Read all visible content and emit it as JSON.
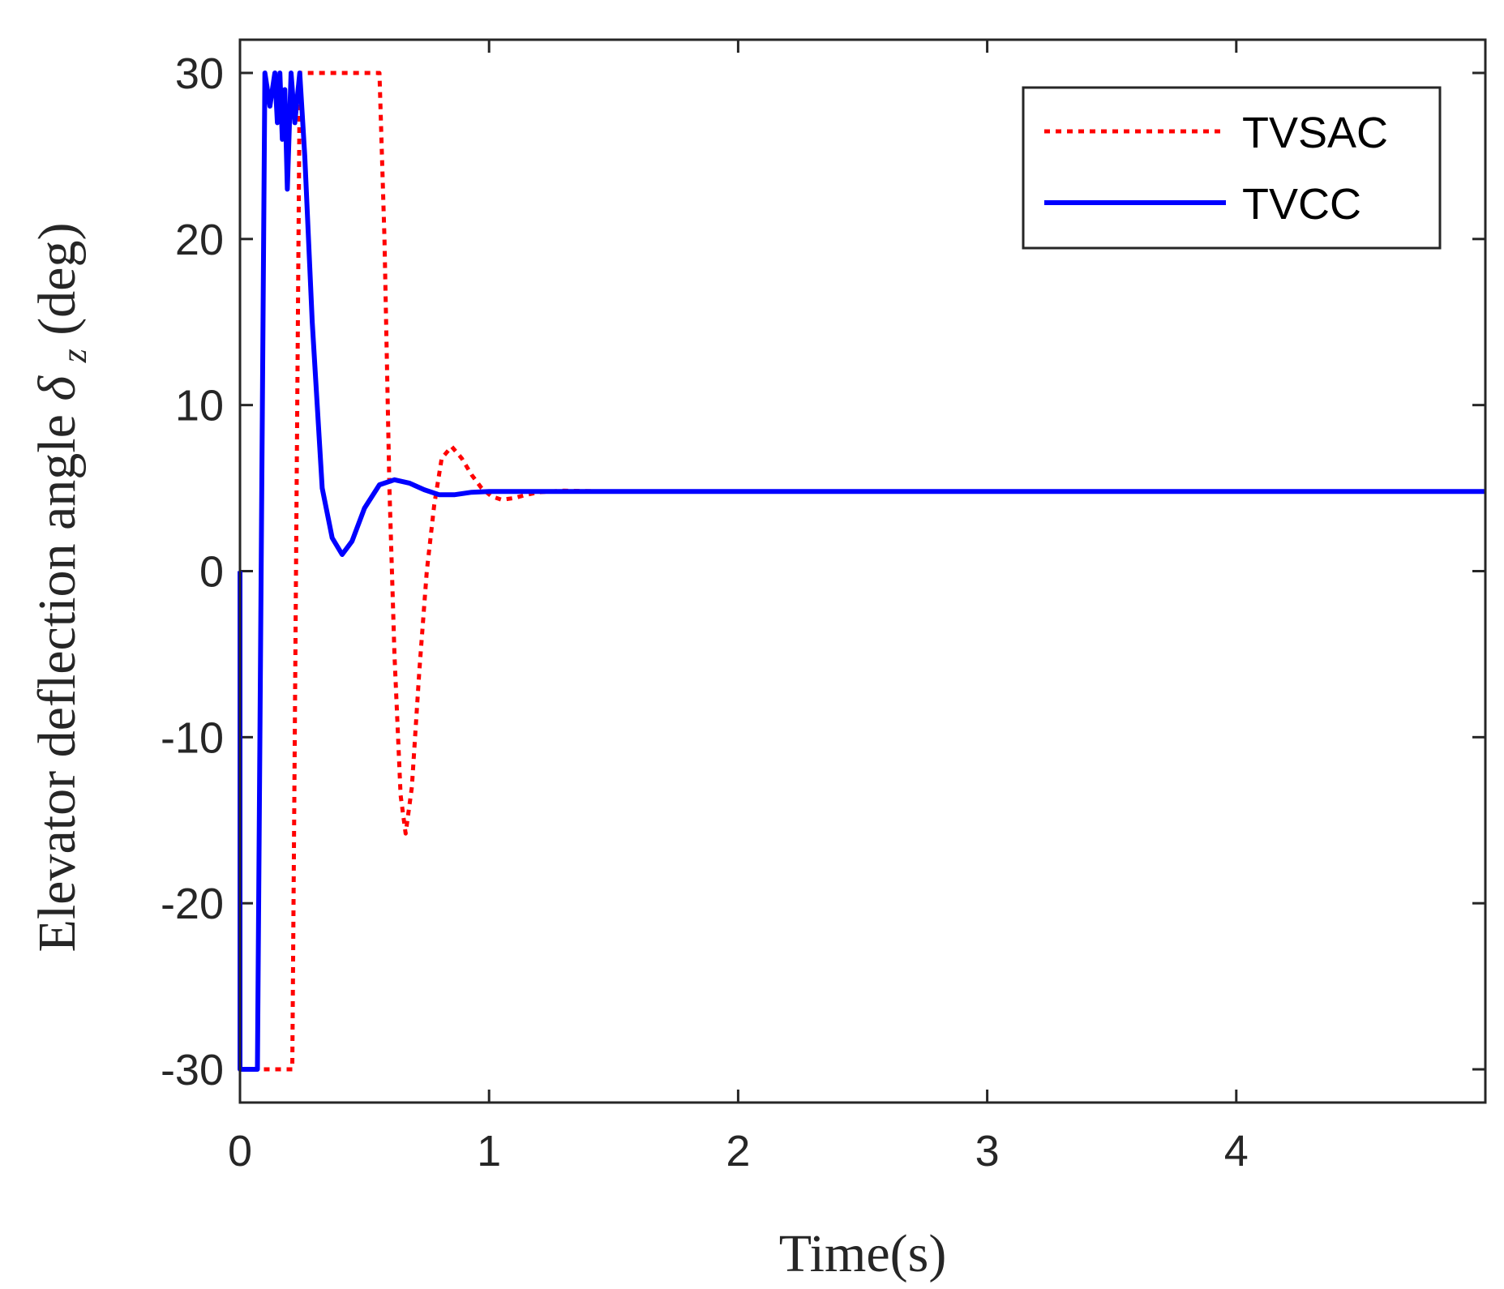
{
  "chart_data": {
    "type": "line",
    "title": "",
    "xlabel": "Time(s)",
    "ylabel": {
      "main": "Elevator deflection angle ",
      "symbol": "δ",
      "subscript": "z",
      "unit": "(deg)"
    },
    "xlim": [
      0,
      5
    ],
    "ylim": [
      -32,
      32
    ],
    "xticks": [
      0,
      1,
      2,
      3,
      4
    ],
    "xtick_labels": [
      "0",
      "1",
      "2",
      "3",
      "4"
    ],
    "yticks": [
      -30,
      -20,
      -10,
      0,
      10,
      20,
      30
    ],
    "ytick_labels": [
      "-30",
      "-20",
      "-10",
      "0",
      "10",
      "20",
      "30"
    ],
    "grid": false,
    "legend": {
      "position": "top-right",
      "entries": [
        "TVSAC",
        "TVCC"
      ]
    },
    "series": [
      {
        "name": "TVSAC",
        "color": "#ff0000",
        "style": "dotted",
        "points": [
          [
            0,
            0
          ],
          [
            0.0,
            -30
          ],
          [
            0.12,
            -30
          ],
          [
            0.21,
            -30
          ],
          [
            0.24,
            30
          ],
          [
            0.56,
            30
          ],
          [
            0.58,
            20
          ],
          [
            0.6,
            5
          ],
          [
            0.62,
            -5
          ],
          [
            0.645,
            -13.5
          ],
          [
            0.665,
            -15.8
          ],
          [
            0.69,
            -13
          ],
          [
            0.72,
            -6
          ],
          [
            0.75,
            0
          ],
          [
            0.78,
            4
          ],
          [
            0.81,
            6.8
          ],
          [
            0.85,
            7.5
          ],
          [
            0.89,
            6.8
          ],
          [
            0.93,
            5.8
          ],
          [
            0.97,
            5.0
          ],
          [
            1.01,
            4.5
          ],
          [
            1.05,
            4.3
          ],
          [
            1.1,
            4.4
          ],
          [
            1.15,
            4.6
          ],
          [
            1.2,
            4.75
          ],
          [
            1.3,
            4.85
          ],
          [
            1.45,
            4.8
          ],
          [
            5.0,
            4.8
          ]
        ]
      },
      {
        "name": "TVCC",
        "color": "#0000ff",
        "style": "solid",
        "points": [
          [
            0,
            0
          ],
          [
            0,
            -30
          ],
          [
            0.07,
            -30
          ],
          [
            0.1,
            30
          ],
          [
            0.12,
            28
          ],
          [
            0.14,
            30
          ],
          [
            0.15,
            27
          ],
          [
            0.16,
            30
          ],
          [
            0.17,
            26
          ],
          [
            0.18,
            29
          ],
          [
            0.19,
            23
          ],
          [
            0.205,
            30
          ],
          [
            0.22,
            27
          ],
          [
            0.24,
            30
          ],
          [
            0.26,
            25
          ],
          [
            0.29,
            15
          ],
          [
            0.33,
            5
          ],
          [
            0.37,
            2
          ],
          [
            0.41,
            1
          ],
          [
            0.45,
            1.8
          ],
          [
            0.5,
            3.8
          ],
          [
            0.56,
            5.2
          ],
          [
            0.62,
            5.5
          ],
          [
            0.68,
            5.3
          ],
          [
            0.74,
            4.9
          ],
          [
            0.8,
            4.6
          ],
          [
            0.86,
            4.6
          ],
          [
            0.93,
            4.75
          ],
          [
            1.0,
            4.8
          ],
          [
            1.2,
            4.8
          ],
          [
            5.0,
            4.8
          ]
        ]
      }
    ]
  }
}
